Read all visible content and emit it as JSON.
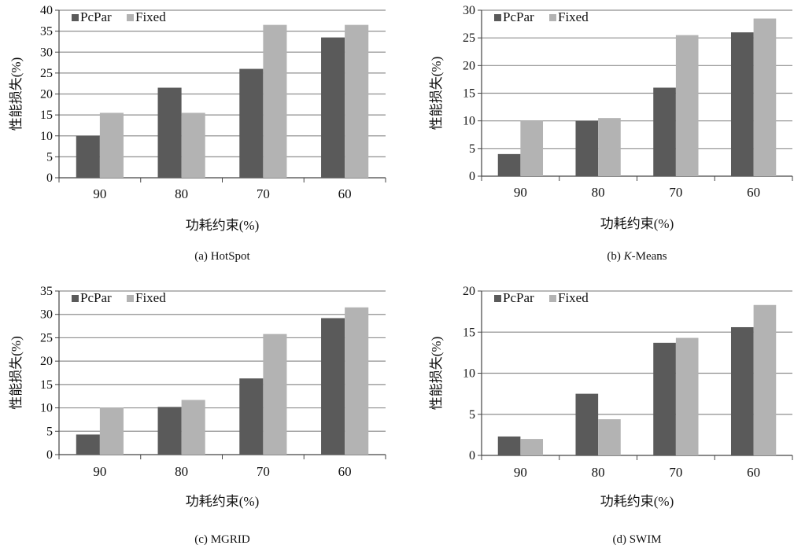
{
  "colors": {
    "pcpar": "#5a5a5a",
    "fixed": "#b3b3b3",
    "grid": "#8f8f8f",
    "axis": "#444444"
  },
  "chart_data": [
    {
      "type": "bar",
      "caption_prefix": "(a) ",
      "caption_italic": "",
      "caption_rest": "HotSpot",
      "categories": [
        "90",
        "80",
        "70",
        "60"
      ],
      "series": [
        {
          "name": "PcPar",
          "values": [
            10,
            21.5,
            26,
            33.5
          ]
        },
        {
          "name": "Fixed",
          "values": [
            15.5,
            15.5,
            36.5,
            36.5
          ]
        }
      ],
      "xlabel": "功耗约束(%)",
      "ylabel": "性能损失(%)",
      "ylim": [
        0,
        40
      ],
      "yticks": [
        "0",
        "5",
        "10",
        "15",
        "20",
        "25",
        "30",
        "35",
        "40"
      ],
      "grid": true,
      "legend": "top-left"
    },
    {
      "type": "bar",
      "caption_prefix": "(b) ",
      "caption_italic": "K",
      "caption_rest": "-Means",
      "categories": [
        "90",
        "80",
        "70",
        "60"
      ],
      "series": [
        {
          "name": "PcPar",
          "values": [
            4,
            10,
            16,
            26
          ]
        },
        {
          "name": "Fixed",
          "values": [
            10,
            10.5,
            25.5,
            28.5
          ]
        }
      ],
      "xlabel": "功耗约束(%)",
      "ylabel": "性能损失(%)",
      "ylim": [
        0,
        30
      ],
      "yticks": [
        "0",
        "5",
        "10",
        "15",
        "20",
        "25",
        "30"
      ],
      "grid": true,
      "legend": "top-left"
    },
    {
      "type": "bar",
      "caption_prefix": "(c) ",
      "caption_italic": "",
      "caption_rest": "MGRID",
      "categories": [
        "90",
        "80",
        "70",
        "60"
      ],
      "series": [
        {
          "name": "PcPar",
          "values": [
            4.3,
            10.2,
            16.3,
            29.2
          ]
        },
        {
          "name": "Fixed",
          "values": [
            10.1,
            11.7,
            25.8,
            31.5
          ]
        }
      ],
      "xlabel": "功耗约束(%)",
      "ylabel": "性能损失(%)",
      "ylim": [
        0,
        35
      ],
      "yticks": [
        "0",
        "5",
        "10",
        "15",
        "20",
        "25",
        "30",
        "35"
      ],
      "grid": true,
      "legend": "top-left"
    },
    {
      "type": "bar",
      "caption_prefix": "(d) ",
      "caption_italic": "",
      "caption_rest": "SWIM",
      "categories": [
        "90",
        "80",
        "70",
        "60"
      ],
      "series": [
        {
          "name": "PcPar",
          "values": [
            2.3,
            7.5,
            13.7,
            15.6
          ]
        },
        {
          "name": "Fixed",
          "values": [
            2.0,
            4.4,
            14.3,
            18.3
          ]
        }
      ],
      "xlabel": "功耗约束(%)",
      "ylabel": "性能损失(%)",
      "ylim": [
        0,
        20
      ],
      "yticks": [
        "0",
        "5",
        "10",
        "15",
        "20"
      ],
      "grid": true,
      "legend": "top-left"
    }
  ]
}
